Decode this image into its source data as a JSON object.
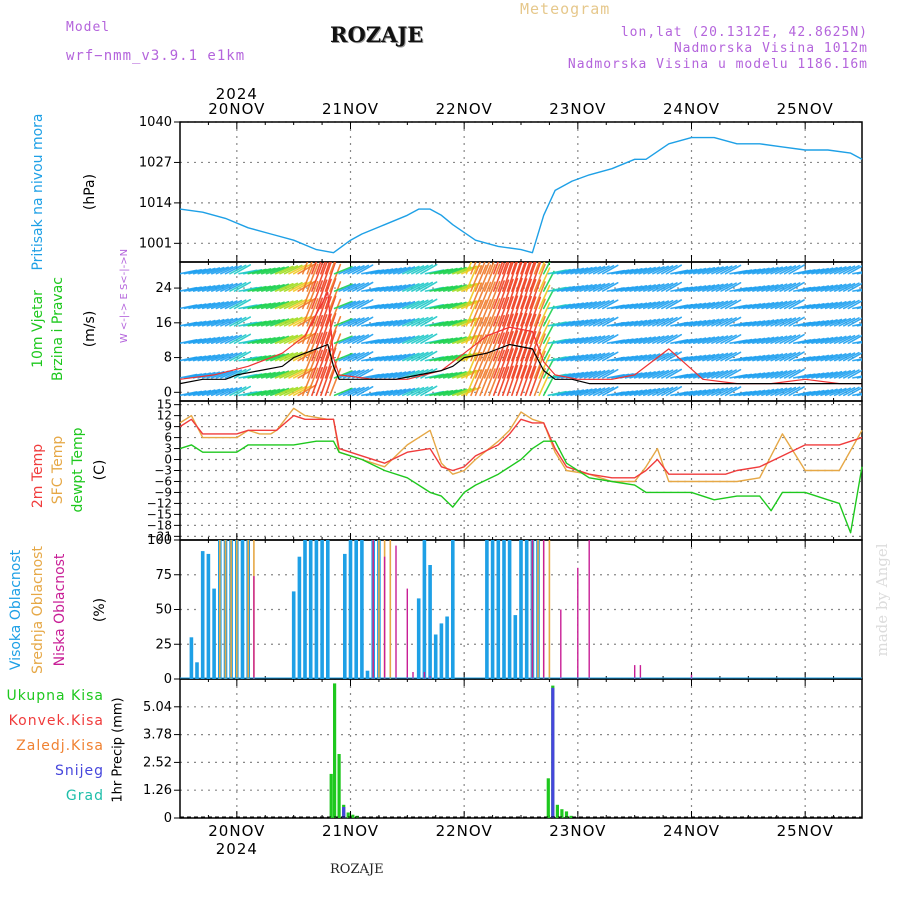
{
  "header": {
    "model_label": "Model",
    "model_name": "wrf−nmm_v3.9.1 e1km",
    "title": "ROZAJE",
    "meteogram": "Meteogram",
    "lonlat": "lon,lat (20.1312E, 42.8625N)",
    "elevation": "Nadmorska Visina 1012m",
    "model_elevation": "Nadmorska Visina u modelu 1186.16m"
  },
  "footer": {
    "location": "ROZAJE",
    "watermark": "made by Angel"
  },
  "colors": {
    "pressure": "#1ea0e6",
    "wind_speed": "#000000",
    "gust": "#f03232",
    "t2m": "#f03c3c",
    "tsfc": "#e6a846",
    "dewpt": "#1ec81e",
    "high_cloud": "#1ea0e6",
    "mid_cloud": "#e6a846",
    "low_cloud": "#c81e96",
    "total_precip": "#1ec81e",
    "conv_precip": "#f03c3c",
    "frz_precip": "#f08232",
    "snow": "#4646dc",
    "grad": "#1ebeaa",
    "label_green": "#1ec81e",
    "label_red": "#f03c3c",
    "label_orange": "#e6a846",
    "label_violet": "#b464dc",
    "label_blue": "#1ea0e6",
    "label_magenta": "#c81e96"
  },
  "chart_data": [
    {
      "type": "line",
      "panel": "pressure",
      "labels": {
        "main": "Pritisak na nivou mora",
        "unit": "(hPa)"
      },
      "x_day_start": 19.5,
      "ylim": [
        995,
        1040
      ],
      "yticks": [
        1001,
        1014,
        1027,
        1040
      ],
      "grid": true,
      "x": [
        19.5,
        19.7,
        19.9,
        20.1,
        20.3,
        20.5,
        20.7,
        20.85,
        21.0,
        21.1,
        21.3,
        21.5,
        21.6,
        21.7,
        21.8,
        21.9,
        22.1,
        22.3,
        22.5,
        22.6,
        22.7,
        22.8,
        22.95,
        23.1,
        23.3,
        23.5,
        23.6,
        23.8,
        24.0,
        24.2,
        24.4,
        24.6,
        24.8,
        25.0,
        25.2,
        25.4,
        25.5
      ],
      "y": [
        1012,
        1011,
        1009,
        1006,
        1004,
        1002,
        999,
        998,
        1002,
        1004,
        1007,
        1010,
        1012,
        1012,
        1010,
        1007,
        1002,
        1000,
        999,
        998,
        1010,
        1018,
        1021,
        1023,
        1025,
        1028,
        1028,
        1033,
        1035,
        1035,
        1033,
        1033,
        1032,
        1031,
        1031,
        1030,
        1028
      ]
    },
    {
      "type": "line",
      "panel": "wind",
      "labels": {
        "main": "10m Vjetar",
        "sub": "Brzina i Pravac",
        "unit": "(m/s)",
        "compass": "W <-|-> E  S<-|->N"
      },
      "ylim": [
        -2,
        30
      ],
      "yticks": [
        0,
        8,
        16,
        24
      ],
      "grid": true,
      "series": [
        {
          "name": "Brzina",
          "x": [
            19.5,
            19.7,
            19.9,
            20.0,
            20.2,
            20.4,
            20.5,
            20.6,
            20.7,
            20.8,
            20.85,
            20.9,
            21.0,
            21.2,
            21.4,
            21.6,
            21.8,
            21.9,
            22.0,
            22.2,
            22.4,
            22.6,
            22.7,
            22.8,
            22.95,
            23.1,
            23.3,
            23.5,
            23.7,
            23.9,
            24.1,
            24.3,
            24.5,
            24.8,
            25.1,
            25.3,
            25.5
          ],
          "y": [
            2,
            3,
            3,
            4,
            5,
            6,
            8,
            9,
            10,
            11,
            6,
            3,
            3,
            3,
            3,
            4,
            5,
            6,
            8,
            9,
            11,
            10,
            5,
            3,
            3,
            2,
            2,
            2,
            2,
            2,
            2,
            2,
            2,
            2,
            2,
            2,
            2
          ]
        },
        {
          "name": "Udari",
          "x": [
            19.5,
            19.8,
            20.1,
            20.4,
            20.6,
            20.8,
            20.85,
            20.9,
            21.2,
            21.5,
            21.8,
            22.0,
            22.2,
            22.4,
            22.6,
            22.7,
            22.8,
            23.0,
            23.3,
            23.5,
            23.8,
            24.1,
            24.4,
            24.7,
            25.0,
            25.3,
            25.5
          ],
          "y": [
            3,
            4,
            6,
            9,
            13,
            23,
            8,
            4,
            3,
            3,
            5,
            9,
            13,
            15,
            14,
            7,
            4,
            3,
            3,
            4,
            10,
            3,
            2,
            2,
            3,
            2,
            2
          ]
        }
      ],
      "arrow_color_scale": [
        "#8c1ee6",
        "#3c3cf0",
        "#1ea0f0",
        "#1ec8c8",
        "#1ed250",
        "#a0dc1e",
        "#f0c81e",
        "#f07828",
        "#f03c1e"
      ]
    },
    {
      "type": "line",
      "panel": "temperature",
      "labels": {
        "t2m": "2m Temp",
        "tsfc": "SFC Temp",
        "dewpt": "dewpt Temp",
        "unit": "(C)"
      },
      "ylim": [
        -22,
        16
      ],
      "yticks": [
        15,
        12,
        9,
        6,
        3,
        0,
        -3,
        -6,
        -9,
        -12,
        -15,
        -18,
        -21
      ],
      "yticklabels": [
        "15",
        "12",
        "9",
        "6",
        "3",
        "0",
        "−3",
        "−6",
        "−9",
        "−12",
        "−15",
        "−18",
        "−21"
      ],
      "grid": true,
      "series": [
        {
          "name": "2m Temp",
          "x": [
            19.5,
            19.6,
            19.7,
            19.8,
            20.0,
            20.1,
            20.2,
            20.3,
            20.35,
            20.5,
            20.6,
            20.8,
            20.85,
            20.9,
            21.1,
            21.3,
            21.5,
            21.7,
            21.8,
            21.9,
            22.0,
            22.1,
            22.3,
            22.4,
            22.5,
            22.6,
            22.7,
            22.8,
            22.9,
            23.1,
            23.3,
            23.5,
            23.6,
            23.7,
            23.8,
            24.0,
            24.2,
            24.3,
            24.4,
            24.6,
            24.8,
            25.0,
            25.2,
            25.3,
            25.5
          ],
          "y": [
            9,
            11,
            7,
            7,
            7,
            8,
            8,
            8,
            8,
            12,
            11,
            11,
            11,
            3,
            1,
            -1,
            2,
            3,
            -2,
            -3,
            -2,
            1,
            4,
            7,
            11,
            10,
            10,
            3,
            -2,
            -4,
            -5,
            -5,
            -3,
            0,
            -4,
            -4,
            -4,
            -4,
            -3,
            -2,
            1,
            4,
            4,
            4,
            6
          ]
        },
        {
          "name": "SFC Temp",
          "x": [
            19.5,
            19.6,
            19.7,
            19.8,
            20.0,
            20.1,
            20.2,
            20.3,
            20.35,
            20.5,
            20.6,
            20.8,
            20.85,
            20.9,
            21.1,
            21.3,
            21.5,
            21.7,
            21.8,
            21.9,
            22.0,
            22.1,
            22.3,
            22.4,
            22.5,
            22.6,
            22.7,
            22.8,
            22.9,
            23.1,
            23.3,
            23.5,
            23.6,
            23.7,
            23.8,
            24.0,
            24.2,
            24.3,
            24.4,
            24.6,
            24.8,
            25.0,
            25.2,
            25.3,
            25.5
          ],
          "y": [
            10,
            12,
            6,
            6,
            6,
            8,
            7,
            7,
            8,
            14,
            12,
            11,
            11,
            2,
            0,
            -2,
            4,
            8,
            -1,
            -4,
            -3,
            0,
            5,
            8,
            13,
            11,
            10,
            2,
            -3,
            -4,
            -6,
            -6,
            -2,
            3,
            -6,
            -6,
            -6,
            -6,
            -6,
            -5,
            7,
            -3,
            -3,
            -3,
            8
          ]
        },
        {
          "name": "dewpt Temp",
          "x": [
            19.5,
            19.6,
            19.7,
            19.8,
            20.0,
            20.1,
            20.3,
            20.5,
            20.7,
            20.85,
            20.9,
            21.1,
            21.3,
            21.5,
            21.7,
            21.8,
            21.9,
            22.0,
            22.1,
            22.3,
            22.5,
            22.6,
            22.7,
            22.8,
            22.9,
            23.1,
            23.3,
            23.5,
            23.6,
            23.8,
            24.0,
            24.2,
            24.4,
            24.6,
            24.7,
            24.8,
            25.0,
            25.2,
            25.3,
            25.4,
            25.5
          ],
          "y": [
            3,
            4,
            2,
            2,
            2,
            4,
            4,
            4,
            5,
            5,
            2,
            0,
            -3,
            -5,
            -9,
            -10,
            -13,
            -9,
            -7,
            -4,
            0,
            3,
            5,
            5,
            -1,
            -5,
            -6,
            -7,
            -9,
            -9,
            -9,
            -11,
            -10,
            -10,
            -14,
            -9,
            -9,
            -11,
            -12,
            -20,
            -2
          ]
        }
      ]
    },
    {
      "type": "bar",
      "panel": "cloud",
      "labels": {
        "high": "Visoka Oblacnost",
        "mid": "Srednja Oblacnost",
        "low": "Niska Oblacnost",
        "unit": "(%)"
      },
      "ylim": [
        0,
        100
      ],
      "yticks": [
        0,
        25,
        50,
        75,
        100
      ],
      "grid": true,
      "series": [
        {
          "name": "Visoka Oblacnost",
          "x": [
            19.6,
            19.65,
            19.7,
            19.75,
            19.8,
            19.85,
            19.9,
            19.95,
            20.0,
            20.05,
            20.1,
            20.5,
            20.55,
            20.6,
            20.65,
            20.7,
            20.75,
            20.8,
            20.95,
            21.0,
            21.05,
            21.1,
            21.15,
            21.2,
            21.25,
            21.6,
            21.65,
            21.7,
            21.75,
            21.8,
            21.85,
            21.9,
            22.2,
            22.25,
            22.3,
            22.35,
            22.4,
            22.45,
            22.5,
            22.55,
            22.6,
            22.65
          ],
          "y": [
            30,
            12,
            92,
            90,
            65,
            100,
            100,
            100,
            100,
            100,
            100,
            63,
            88,
            100,
            100,
            100,
            100,
            100,
            90,
            100,
            100,
            100,
            6,
            100,
            100,
            58,
            100,
            82,
            32,
            40,
            45,
            100,
            100,
            100,
            100,
            100,
            100,
            46,
            100,
            100,
            100,
            100
          ]
        },
        {
          "name": "Srednja Oblacnost",
          "x": [
            19.85,
            19.9,
            19.95,
            20.0,
            20.1,
            20.15,
            21.2,
            21.25,
            21.3,
            21.35,
            22.6,
            22.65,
            22.7,
            22.75
          ],
          "y": [
            100,
            100,
            100,
            100,
            100,
            100,
            100,
            100,
            100,
            100,
            100,
            100,
            100,
            100
          ]
        },
        {
          "name": "Niska Oblacnost",
          "x": [
            20.15,
            21.2,
            21.3,
            21.4,
            21.5,
            21.55,
            21.65,
            21.7,
            22.6,
            22.7,
            22.85,
            23.0,
            23.1,
            23.5,
            23.55,
            24.0
          ],
          "y": [
            74,
            100,
            88,
            96,
            65,
            5,
            5,
            2,
            100,
            100,
            50,
            80,
            100,
            10,
            10,
            3
          ]
        }
      ]
    },
    {
      "type": "bar",
      "panel": "precipitation",
      "labels": {
        "total": "Ukupna Kisa",
        "conv": "Konvek.Kisa",
        "frz": "Zaledj.Kisa",
        "snow": "Snijeg",
        "grad": "Grad",
        "unit": "1hr Precip (mm)"
      },
      "ylim": [
        0,
        6.3
      ],
      "yticks": [
        0,
        1.26,
        2.52,
        3.78,
        5.04
      ],
      "yticklabels": [
        "0",
        "1.26",
        "2.52",
        "3.78",
        "5.04"
      ],
      "grid": true,
      "series": [
        {
          "name": "Ukupna Kisa",
          "x": [
            20.83,
            20.86,
            20.9,
            20.94,
            20.98,
            21.02,
            21.06,
            22.74,
            22.78,
            22.82,
            22.86,
            22.9,
            22.94
          ],
          "y": [
            2.0,
            6.1,
            2.9,
            0.6,
            0.25,
            0.15,
            0.1,
            1.8,
            6.0,
            0.6,
            0.4,
            0.3,
            0.1
          ]
        },
        {
          "name": "Snijeg",
          "x": [
            20.94,
            22.78
          ],
          "y": [
            0.5,
            5.9
          ]
        }
      ]
    }
  ],
  "xaxis": {
    "year": "2024",
    "day_start": 19.5,
    "day_end": 25.5,
    "days": [
      {
        "day": 20,
        "label": "20NOV"
      },
      {
        "day": 21,
        "label": "21NOV"
      },
      {
        "day": 22,
        "label": "22NOV"
      },
      {
        "day": 23,
        "label": "23NOV"
      },
      {
        "day": 24,
        "label": "24NOV"
      },
      {
        "day": 25,
        "label": "25NOV"
      }
    ]
  }
}
